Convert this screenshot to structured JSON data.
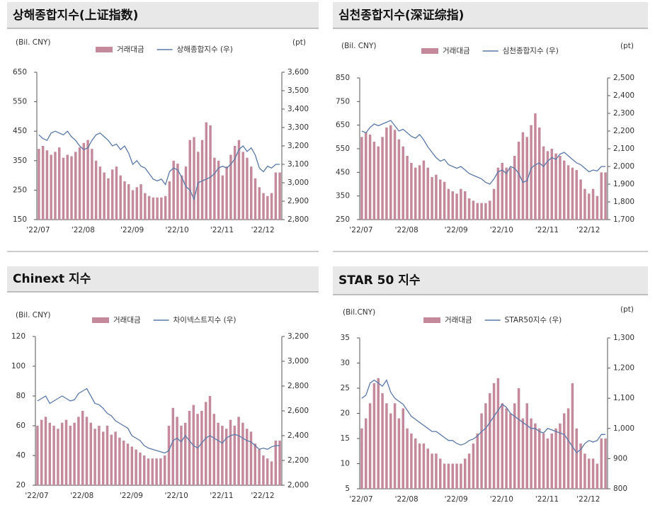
{
  "chart_data": [
    {
      "type": "bar-line",
      "title": "상해종합지수(上证指数)",
      "y_label": "(Bil. CNY)",
      "y2_label": "(pt)",
      "categories": [
        "'22/07",
        null,
        null,
        null,
        null,
        null,
        null,
        null,
        null,
        null,
        null,
        "'22/08",
        null,
        null,
        null,
        null,
        null,
        null,
        null,
        null,
        null,
        null,
        null,
        "'22/09",
        null,
        null,
        null,
        null,
        null,
        null,
        null,
        null,
        null,
        null,
        "'22/10",
        null,
        null,
        null,
        null,
        null,
        null,
        null,
        null,
        null,
        null,
        "'22/11",
        null,
        null,
        null,
        null,
        null,
        null,
        null,
        null,
        null,
        "'22/12",
        null,
        null,
        null,
        null
      ],
      "series": [
        {
          "name": "거래대금",
          "color": "#c48a9c",
          "values": [
            390,
            400,
            385,
            370,
            380,
            395,
            360,
            370,
            365,
            380,
            395,
            410,
            420,
            390,
            350,
            330,
            310,
            290,
            320,
            330,
            300,
            280,
            270,
            250,
            260,
            270,
            240,
            230,
            225,
            225,
            225,
            230,
            280,
            350,
            340,
            300,
            330,
            420,
            430,
            380,
            420,
            480,
            470,
            360,
            350,
            300,
            330,
            370,
            400,
            420,
            380,
            360,
            330,
            290,
            260,
            240,
            230,
            240,
            310,
            310
          ]
        },
        {
          "name": "상해종합지수 (우)",
          "color": "#5a78a8",
          "axis": "y2",
          "values": [
            3260,
            3240,
            3230,
            3270,
            3280,
            3270,
            3260,
            3280,
            3250,
            3230,
            3200,
            3180,
            3190,
            3230,
            3260,
            3270,
            3250,
            3230,
            3200,
            3210,
            3180,
            3200,
            3160,
            3100,
            3120,
            3090,
            3080,
            3050,
            3020,
            3010,
            3020,
            2990,
            3060,
            3080,
            3070,
            3030,
            2980,
            2960,
            2910,
            3000,
            3010,
            3020,
            3030,
            3050,
            3080,
            3090,
            3080,
            3100,
            3130,
            3180,
            3200,
            3170,
            3190,
            3150,
            3080,
            3060,
            3090,
            3080,
            3100,
            3100
          ]
        }
      ],
      "ylim": [
        150,
        650
      ],
      "yticks": [
        150,
        250,
        350,
        450,
        550,
        650
      ],
      "y2lim": [
        2800,
        3600
      ],
      "y2ticks": [
        {
          "value": 2800,
          "label": "2,800"
        },
        {
          "value": 2900,
          "label": "2,900"
        },
        {
          "value": 3000,
          "label": "3,000"
        },
        {
          "value": 3100,
          "label": "3,100"
        },
        {
          "value": 3200,
          "label": "3,200"
        },
        {
          "value": 3300,
          "label": "3,300"
        },
        {
          "value": 3400,
          "label": "3,400"
        },
        {
          "value": 3500,
          "label": "3,500"
        },
        {
          "value": 3600,
          "label": "3,600"
        }
      ]
    },
    {
      "type": "bar-line",
      "title": "심천종합지수(深证综指)",
      "y_label": "(Bil. CNY)",
      "y2_label": "(pt)",
      "categories": [
        "'22/07",
        null,
        null,
        null,
        null,
        null,
        null,
        null,
        null,
        null,
        null,
        "'22/08",
        null,
        null,
        null,
        null,
        null,
        null,
        null,
        null,
        null,
        null,
        null,
        "'22/09",
        null,
        null,
        null,
        null,
        null,
        null,
        null,
        null,
        null,
        null,
        "'22/10",
        null,
        null,
        null,
        null,
        null,
        null,
        null,
        null,
        null,
        null,
        "'22/11",
        null,
        null,
        null,
        null,
        null,
        null,
        null,
        null,
        null,
        "'22/12",
        null,
        null,
        null,
        null
      ],
      "series": [
        {
          "name": "거래대금",
          "color": "#c48a9c",
          "values": [
            600,
            620,
            610,
            580,
            560,
            600,
            640,
            650,
            630,
            590,
            560,
            520,
            490,
            470,
            480,
            500,
            470,
            430,
            440,
            420,
            410,
            380,
            370,
            360,
            380,
            370,
            340,
            330,
            320,
            320,
            320,
            330,
            380,
            470,
            490,
            470,
            470,
            520,
            580,
            620,
            600,
            650,
            700,
            640,
            560,
            540,
            550,
            530,
            520,
            500,
            480,
            470,
            460,
            420,
            380,
            360,
            380,
            350,
            450,
            450
          ]
        },
        {
          "name": "심천종합지수 (우)",
          "color": "#5a78a8",
          "axis": "y2",
          "values": [
            2200,
            2190,
            2220,
            2240,
            2230,
            2240,
            2250,
            2260,
            2230,
            2200,
            2210,
            2190,
            2170,
            2160,
            2180,
            2150,
            2110,
            2080,
            2050,
            2030,
            2040,
            2010,
            2000,
            1990,
            2000,
            1980,
            1960,
            1950,
            1940,
            1930,
            1910,
            1900,
            1930,
            1970,
            1980,
            1960,
            2000,
            1990,
            1960,
            1910,
            1920,
            1990,
            2010,
            2020,
            2000,
            2030,
            2050,
            2040,
            2070,
            2080,
            2060,
            2040,
            2020,
            2010,
            1990,
            1970,
            1980,
            1975,
            2000,
            2000
          ]
        }
      ],
      "ylim": [
        250,
        850
      ],
      "yticks": [
        250,
        350,
        450,
        550,
        650,
        750,
        850
      ],
      "y2lim": [
        1700,
        2500
      ],
      "y2ticks": [
        {
          "value": 1700,
          "label": "1,700"
        },
        {
          "value": 1800,
          "label": "1,800"
        },
        {
          "value": 1900,
          "label": "1,900"
        },
        {
          "value": 2000,
          "label": "2,000"
        },
        {
          "value": 2100,
          "label": "2,100"
        },
        {
          "value": 2200,
          "label": "2,200"
        },
        {
          "value": 2300,
          "label": "2,300"
        },
        {
          "value": 2400,
          "label": "2,400"
        },
        {
          "value": 2500,
          "label": "2,500"
        }
      ]
    },
    {
      "type": "bar-line",
      "title": "Chinext 지수",
      "y_label": "(Bil. CNY)",
      "categories": [
        "'22/07",
        null,
        null,
        null,
        null,
        null,
        null,
        null,
        null,
        null,
        null,
        "'22/08",
        null,
        null,
        null,
        null,
        null,
        null,
        null,
        null,
        null,
        null,
        null,
        "'22/09",
        null,
        null,
        null,
        null,
        null,
        null,
        null,
        null,
        null,
        null,
        "'22/10",
        null,
        null,
        null,
        null,
        null,
        null,
        null,
        null,
        null,
        null,
        "'22/11",
        null,
        null,
        null,
        null,
        null,
        null,
        null,
        null,
        null,
        "'22/12",
        null,
        null,
        null,
        null
      ],
      "series": [
        {
          "name": "거래대금",
          "color": "#c48a9c",
          "values": [
            60,
            64,
            66,
            62,
            60,
            58,
            62,
            64,
            60,
            62,
            66,
            70,
            66,
            62,
            58,
            60,
            56,
            60,
            54,
            56,
            52,
            50,
            48,
            46,
            44,
            42,
            40,
            38,
            38,
            38,
            38,
            40,
            60,
            72,
            66,
            60,
            62,
            70,
            74,
            68,
            70,
            76,
            80,
            68,
            62,
            60,
            58,
            64,
            60,
            66,
            62,
            58,
            56,
            48,
            44,
            40,
            38,
            36,
            50,
            50
          ]
        },
        {
          "name": "차이넥스트지수 (우)",
          "color": "#5a78a8",
          "axis": "y2",
          "values": [
            2680,
            2700,
            2720,
            2660,
            2680,
            2700,
            2720,
            2700,
            2680,
            2690,
            2740,
            2760,
            2780,
            2720,
            2660,
            2650,
            2620,
            2580,
            2560,
            2520,
            2500,
            2480,
            2460,
            2400,
            2380,
            2360,
            2320,
            2300,
            2290,
            2280,
            2270,
            2260,
            2280,
            2360,
            2380,
            2350,
            2400,
            2360,
            2320,
            2300,
            2340,
            2380,
            2400,
            2380,
            2360,
            2340,
            2380,
            2400,
            2410,
            2400,
            2380,
            2360,
            2350,
            2320,
            2290,
            2300,
            2290,
            2310,
            2320,
            2320
          ]
        }
      ],
      "ylim": [
        20,
        120
      ],
      "yticks": [
        20,
        40,
        60,
        80,
        100,
        120
      ],
      "y2lim": [
        2000,
        3200
      ],
      "y2ticks": [
        {
          "value": 2000,
          "label": "2,000"
        },
        {
          "value": 2200,
          "label": "2,200"
        },
        {
          "value": 2400,
          "label": "2,400"
        },
        {
          "value": 2600,
          "label": "2,600"
        },
        {
          "value": 2800,
          "label": "2,800"
        },
        {
          "value": 3000,
          "label": "3,000"
        },
        {
          "value": 3200,
          "label": "3,200"
        }
      ]
    },
    {
      "type": "bar-line",
      "title": "STAR 50 지수",
      "y_label": "(Bil.CNY)",
      "y2_label": "(pt)",
      "categories": [
        "'22/07",
        null,
        null,
        null,
        null,
        null,
        null,
        null,
        null,
        null,
        null,
        "'22/08",
        null,
        null,
        null,
        null,
        null,
        null,
        null,
        null,
        null,
        null,
        null,
        "'22/09",
        null,
        null,
        null,
        null,
        null,
        null,
        null,
        null,
        null,
        null,
        "'22/10",
        null,
        null,
        null,
        null,
        null,
        null,
        null,
        null,
        null,
        null,
        "'22/11",
        null,
        null,
        null,
        null,
        null,
        null,
        null,
        null,
        null,
        "'22/12",
        null,
        null,
        null,
        null
      ],
      "series": [
        {
          "name": "거래대금",
          "color": "#c48a9c",
          "values": [
            17,
            19,
            22,
            26,
            27,
            24,
            22,
            20,
            22,
            19,
            21,
            17,
            16,
            15,
            14,
            14,
            13,
            12,
            12,
            11,
            10,
            10,
            10,
            10,
            10,
            11,
            12,
            14,
            16,
            20,
            22,
            24,
            26,
            27,
            22,
            21,
            20,
            22,
            25,
            19,
            22,
            19,
            18,
            17,
            16,
            15,
            16,
            17,
            18,
            20,
            21,
            26,
            17,
            14,
            12,
            11,
            11,
            10,
            15,
            15
          ]
        },
        {
          "name": "STAR50지수 (우)",
          "color": "#5a78a8",
          "axis": "y2",
          "values": [
            1100,
            1110,
            1150,
            1160,
            1150,
            1140,
            1160,
            1120,
            1100,
            1090,
            1080,
            1060,
            1040,
            1030,
            1020,
            1010,
            1000,
            990,
            990,
            980,
            970,
            960,
            960,
            950,
            945,
            950,
            960,
            965,
            975,
            990,
            1000,
            1020,
            1040,
            1060,
            1080,
            1070,
            1050,
            1040,
            1030,
            1020,
            1010,
            1000,
            1000,
            990,
            985,
            1000,
            995,
            990,
            985,
            980,
            960,
            940,
            920,
            930,
            950,
            960,
            955,
            960,
            980,
            980
          ]
        }
      ],
      "ylim": [
        5,
        35
      ],
      "yticks": [
        5,
        10,
        15,
        20,
        25,
        30,
        35
      ],
      "y2lim": [
        800,
        1300
      ],
      "y2ticks": [
        800,
        {
          "value": 900,
          "label": "900"
        },
        {
          "value": 1000,
          "label": "1,000"
        },
        {
          "value": 1100,
          "label": "1,100"
        },
        {
          "value": 1200,
          "label": "1,200"
        },
        {
          "value": 1300,
          "label": "1,300"
        }
      ]
    }
  ]
}
